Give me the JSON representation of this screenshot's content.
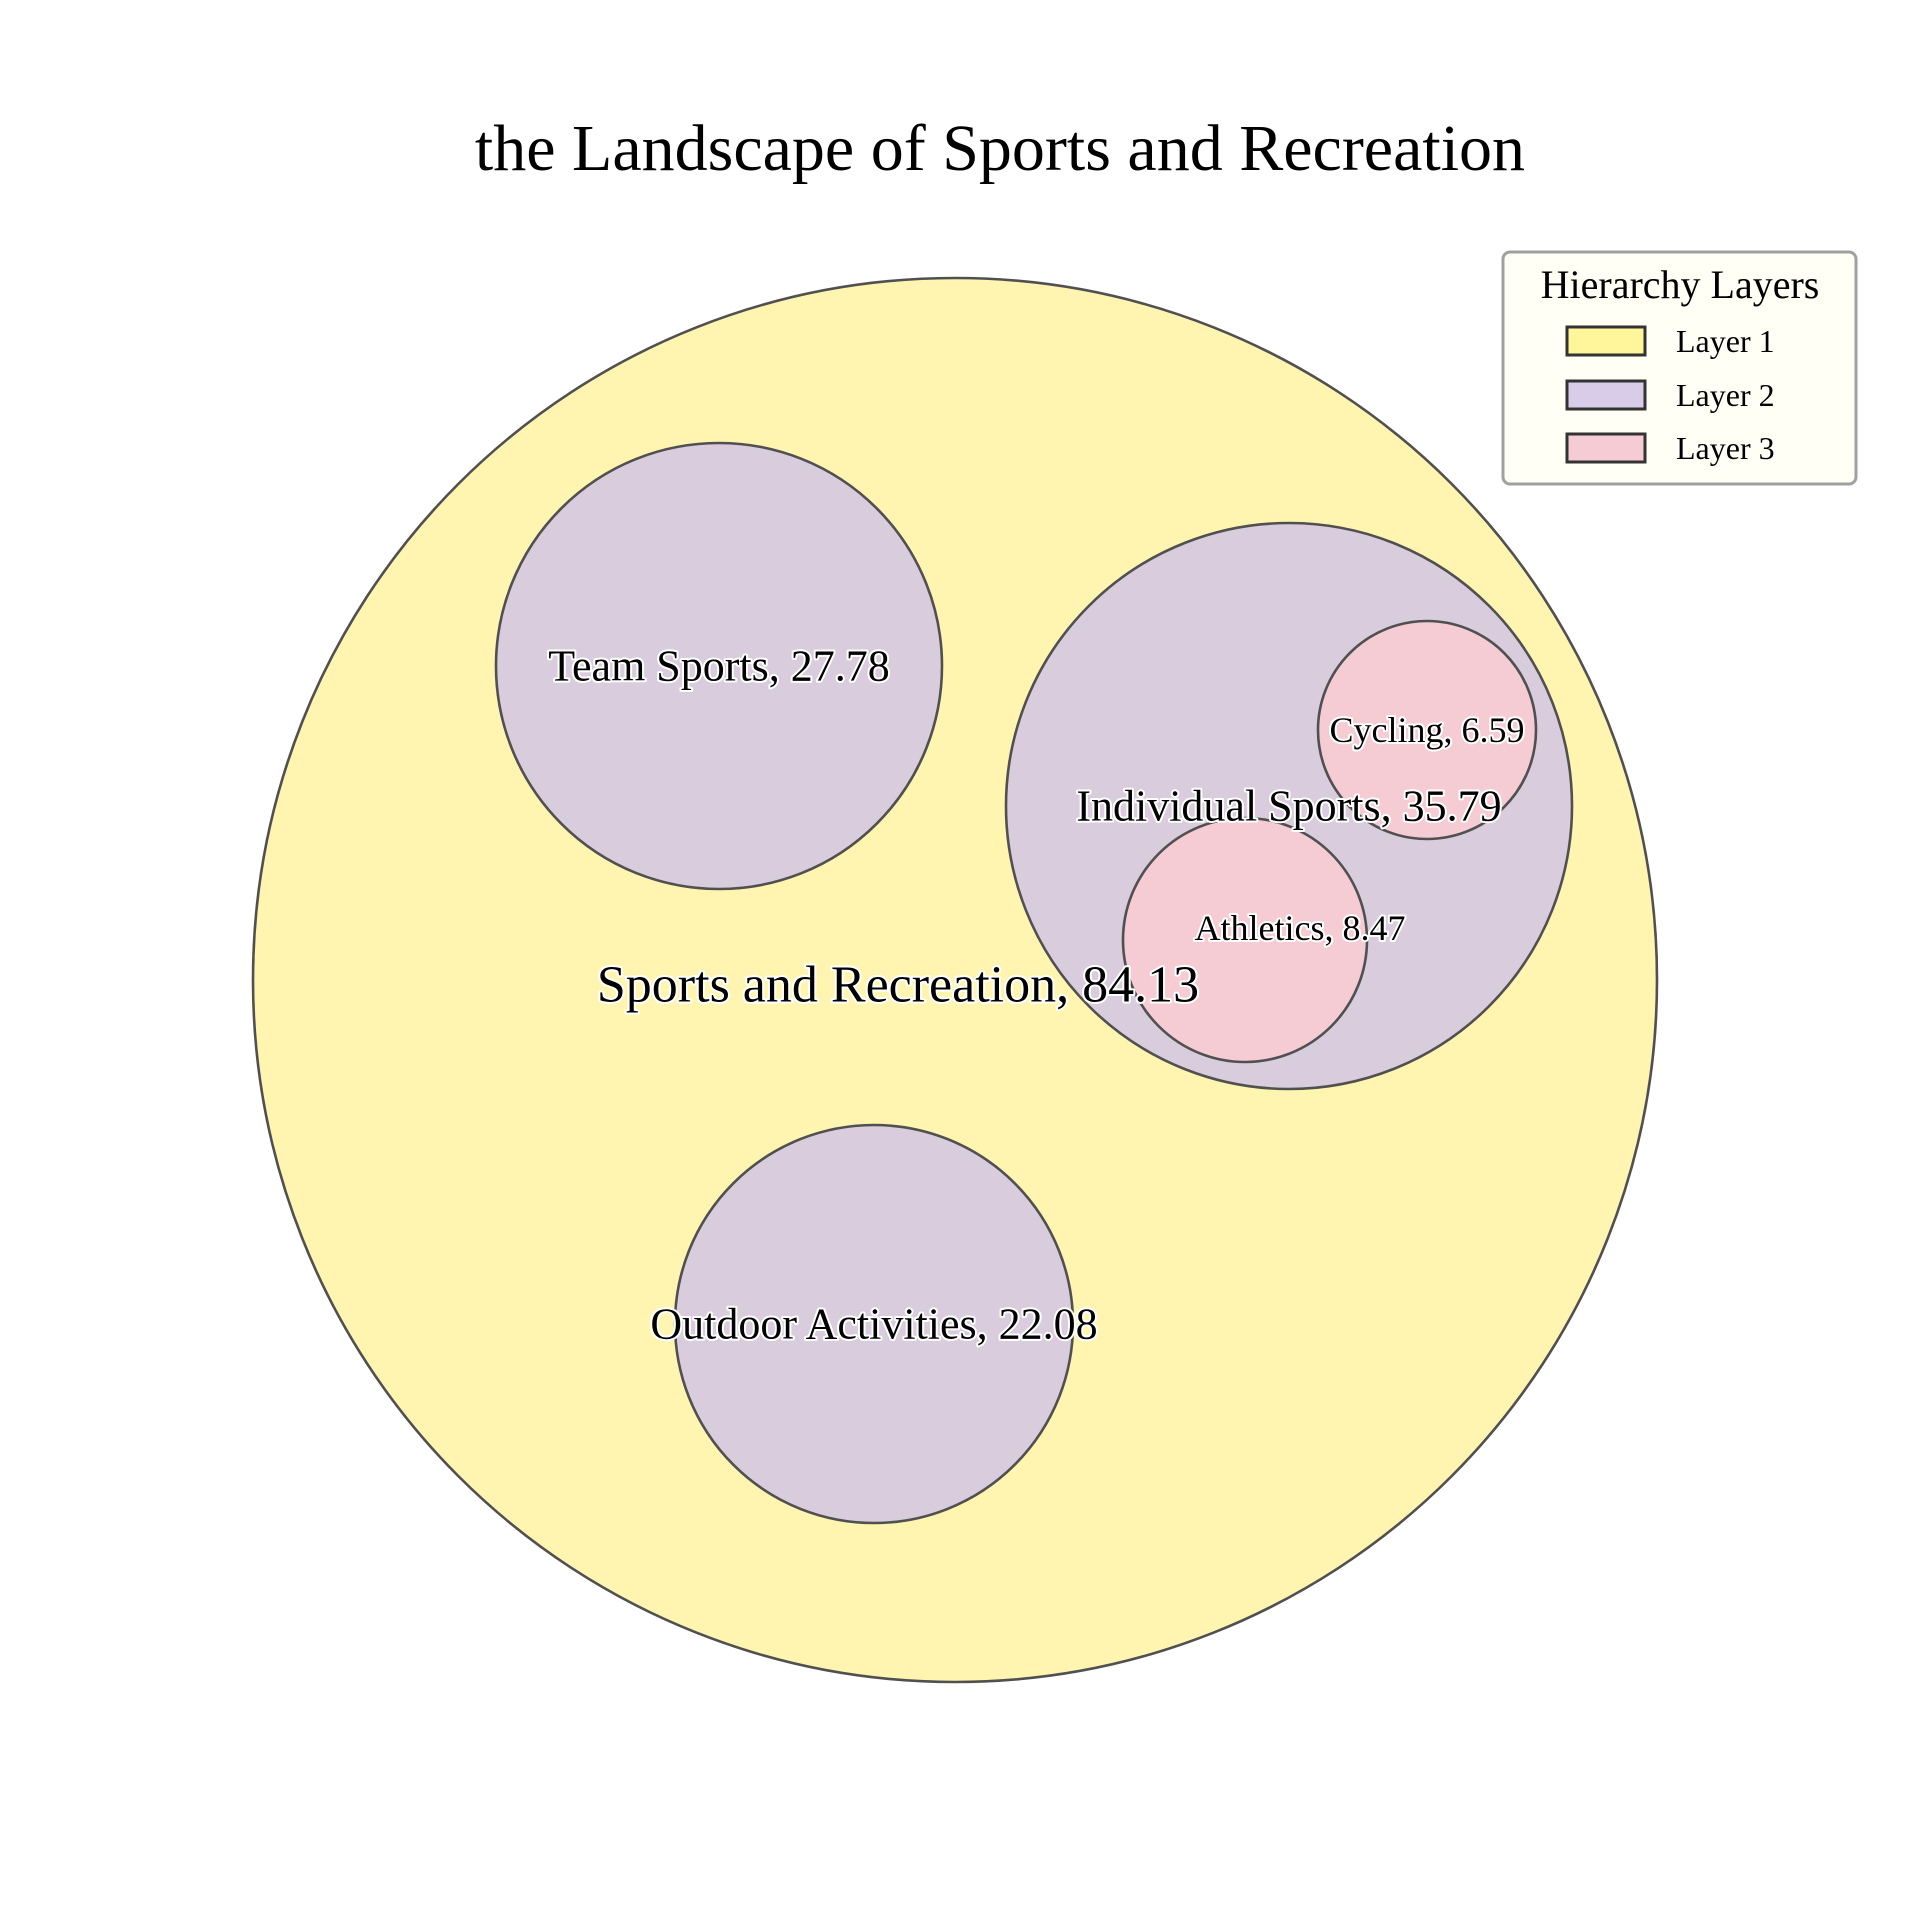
{
  "chart_data": {
    "type": "circle-packing",
    "title": "the Landscape of Sports and Recreation",
    "nodes": [
      {
        "id": "sports-and-recreation",
        "name": "Sports and Recreation",
        "value": 84.13,
        "layer": 1,
        "parent": null
      },
      {
        "id": "team-sports",
        "name": "Team Sports",
        "value": 27.78,
        "layer": 2,
        "parent": "sports-and-recreation"
      },
      {
        "id": "individual-sports",
        "name": "Individual Sports",
        "value": 35.79,
        "layer": 2,
        "parent": "sports-and-recreation"
      },
      {
        "id": "outdoor-activities",
        "name": "Outdoor Activities",
        "value": 22.08,
        "layer": 2,
        "parent": "sports-and-recreation"
      },
      {
        "id": "cycling",
        "name": "Cycling",
        "value": 6.59,
        "layer": 3,
        "parent": "individual-sports"
      },
      {
        "id": "athletics",
        "name": "Athletics",
        "value": 8.47,
        "layer": 3,
        "parent": "individual-sports"
      }
    ],
    "legend": {
      "title": "Hierarchy Layers",
      "placement": "top-right",
      "entries": [
        {
          "label": "Layer 1",
          "layer": 1,
          "color": "#fff5b0"
        },
        {
          "label": "Layer 2",
          "layer": 2,
          "color": "#d9ccdc"
        },
        {
          "label": "Layer 3",
          "layer": 3,
          "color": "#f5ccd4"
        }
      ]
    },
    "layer_colors": {
      "1": "#fff5b0",
      "2": "#d9ccdc",
      "3": "#f5ccd4"
    },
    "legend_swatch_colors": {
      "1": "#fff59a",
      "2": "#d8cce8",
      "3": "#f5ccd4"
    }
  }
}
